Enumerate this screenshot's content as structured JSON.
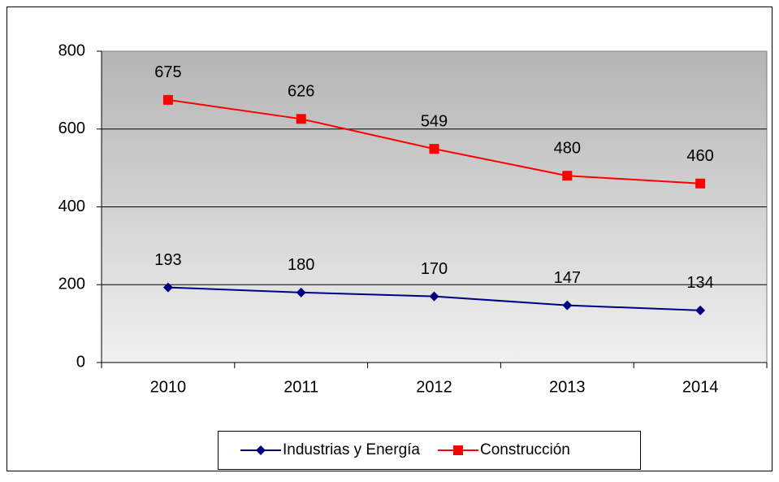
{
  "chart_data": {
    "type": "line",
    "categories": [
      "2010",
      "2011",
      "2012",
      "2013",
      "2014"
    ],
    "series": [
      {
        "name": "Industrias y Energía",
        "color": "#000080",
        "marker": "diamond",
        "values": [
          193,
          180,
          170,
          147,
          134
        ]
      },
      {
        "name": "Construcción",
        "color": "#ff0000",
        "marker": "square",
        "values": [
          675,
          626,
          549,
          480,
          460
        ]
      }
    ],
    "ylim": [
      0,
      800
    ],
    "yticks": [
      0,
      200,
      400,
      600,
      800
    ],
    "grid": true,
    "legend": "bottom"
  }
}
